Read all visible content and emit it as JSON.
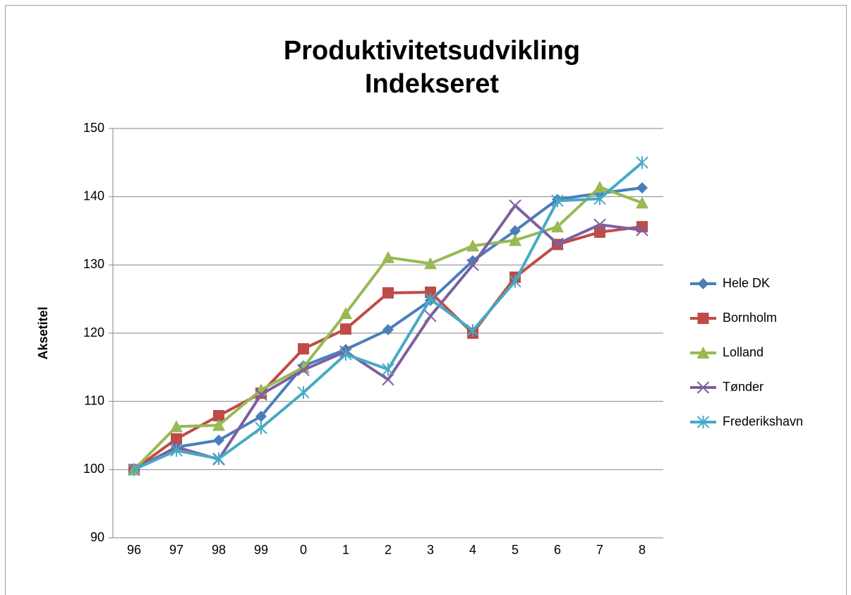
{
  "chart_data": {
    "type": "line",
    "title": [
      "Produktivitetsudvikling",
      "Indekseret"
    ],
    "y_label": "Aksetitel",
    "categories": [
      "96",
      "97",
      "98",
      "99",
      "0",
      "1",
      "2",
      "3",
      "4",
      "5",
      "6",
      "7",
      "8"
    ],
    "series": [
      {
        "name": "Hele DK",
        "color": "#4a7ebb",
        "marker": "diamond",
        "values": [
          100,
          103.3,
          104.3,
          107.8,
          115.2,
          117.6,
          120.5,
          124.8,
          130.6,
          135.0,
          139.6,
          140.5,
          141.3
        ]
      },
      {
        "name": "Bornholm",
        "color": "#be4b48",
        "marker": "square",
        "values": [
          100,
          104.5,
          107.9,
          111.2,
          117.7,
          120.6,
          125.9,
          126.0,
          120.0,
          128.2,
          133.0,
          134.8,
          135.6
        ]
      },
      {
        "name": "Lolland",
        "color": "#98b954",
        "marker": "triangle",
        "values": [
          100,
          106.3,
          106.5,
          111.7,
          115.0,
          122.9,
          131.1,
          130.2,
          132.8,
          133.6,
          135.6,
          141.4,
          139.1
        ]
      },
      {
        "name": "Tønder",
        "color": "#7d60a0",
        "marker": "x",
        "values": [
          100,
          103.3,
          101.5,
          111.0,
          114.6,
          117.3,
          113.2,
          122.5,
          130.0,
          138.7,
          133.1,
          135.9,
          135.1
        ]
      },
      {
        "name": "Frederikshavn",
        "color": "#46aac5",
        "marker": "star",
        "values": [
          100,
          102.8,
          101.6,
          106.1,
          111.3,
          116.9,
          114.7,
          125.0,
          120.4,
          127.6,
          139.4,
          139.7,
          145.0
        ]
      }
    ],
    "ylim": [
      90,
      150
    ],
    "yticks": [
      90,
      100,
      110,
      120,
      130,
      140,
      150
    ],
    "grid": true,
    "legend": "right"
  }
}
